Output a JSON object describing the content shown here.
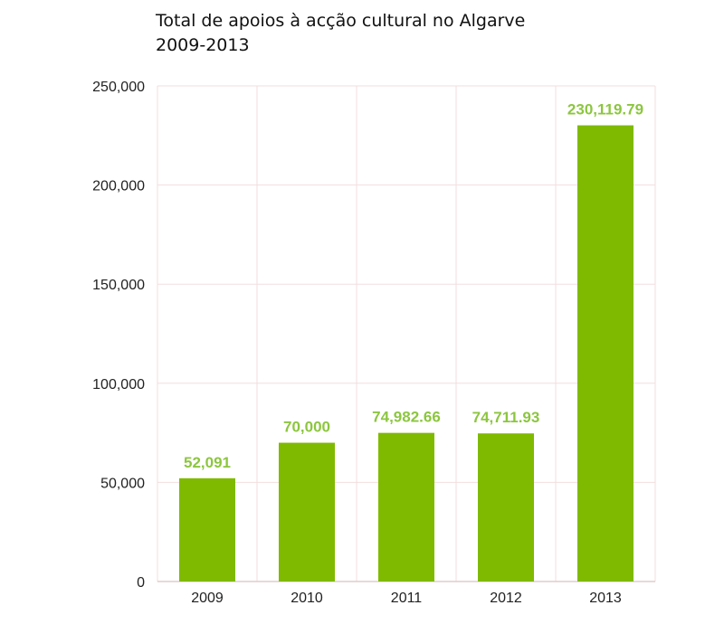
{
  "chart_data": {
    "type": "bar",
    "title": "Total de apoios à acção cultural no Algarve",
    "subtitle": "2009-2013",
    "xlabel": "",
    "ylabel": "",
    "categories": [
      "2009",
      "2010",
      "2011",
      "2012",
      "2013"
    ],
    "values": [
      52091,
      70000,
      74982.66,
      74711.93,
      230119.79
    ],
    "data_labels": [
      "52,091",
      "70,000",
      "74,982.66",
      "74,711.93",
      "230,119.79"
    ],
    "ylim": [
      0,
      250000
    ],
    "yticks": [
      0,
      50000,
      100000,
      150000,
      200000,
      250000
    ],
    "ytick_labels": [
      "0",
      "50,000",
      "100,000",
      "150,000",
      "200,000",
      "250,000"
    ],
    "grid": true,
    "legend": "none",
    "colors": {
      "bar": "#7fba00",
      "label": "#8cc63f",
      "grid": "#f3dede",
      "axis": "#e2cccc"
    }
  }
}
